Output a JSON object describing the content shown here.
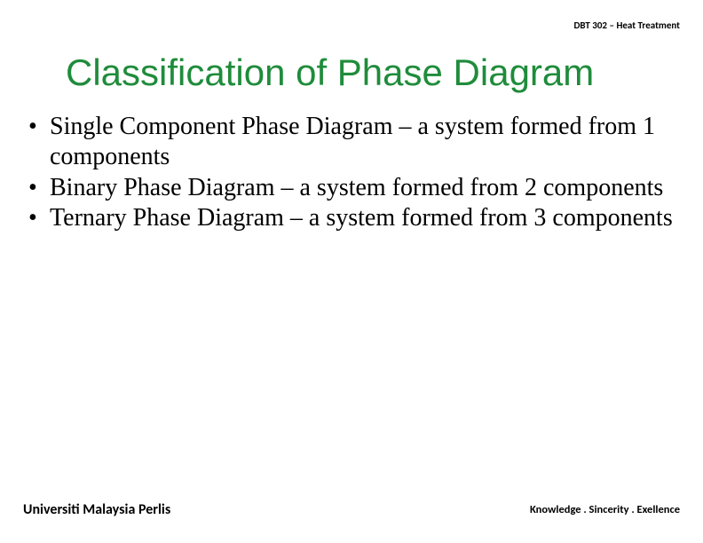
{
  "header": {
    "course_code": "DBT 302 – Heat Treatment"
  },
  "title": "Classification of Phase Diagram",
  "bullets": [
    "Single Component Phase Diagram – a system formed from 1 components",
    "Binary Phase Diagram – a system formed from 2 components",
    "Ternary Phase Diagram – a system formed from 3 components"
  ],
  "footer": {
    "left": "Universiti Malaysia Perlis",
    "right": "Knowledge . Sincerity . Exellence"
  },
  "colors": {
    "title_color": "#1f8c3b",
    "text_color": "#000000",
    "background": "#ffffff"
  },
  "typography": {
    "title_fontsize": 42,
    "body_fontsize": 28,
    "header_fontsize": 11,
    "footer_left_fontsize": 16,
    "footer_right_fontsize": 12.5,
    "title_font": "Segoe UI Light",
    "body_font": "Times New Roman"
  }
}
